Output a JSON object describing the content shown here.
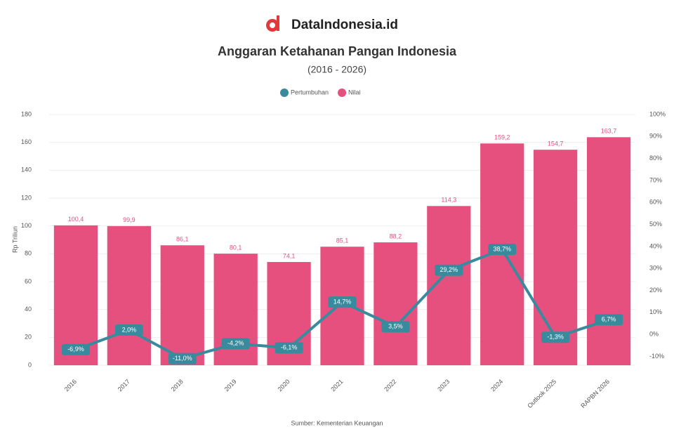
{
  "brand": "DataIndonesia.id",
  "chart_data": {
    "type": "bar-line",
    "title": "Anggaran Ketahanan Pangan Indonesia",
    "subtitle": "(2016 - 2026)",
    "y_axis_label": "Rp Triliun",
    "source": "Sumber: Kementerian Keuangan",
    "categories": [
      "2016",
      "2017",
      "2018",
      "2019",
      "2020",
      "2021",
      "2022",
      "2023",
      "2024",
      "Outlook 2025",
      "RAPBN 2026"
    ],
    "series": [
      {
        "name": "Pertumbuhan",
        "type": "line",
        "axis": "y2",
        "color": "#3a8a9e",
        "values": [
          -6.9,
          2.0,
          -11.0,
          -4.2,
          -6.1,
          14.7,
          3.5,
          29.2,
          38.7,
          -1.3,
          6.7
        ],
        "value_labels": [
          "-6,9%",
          "2,0%",
          "-11,0%",
          "-4,2%",
          "-6,1%",
          "14,7%",
          "3,5%",
          "29,2%",
          "38,7%",
          "-1,3%",
          "6,7%"
        ]
      },
      {
        "name": "Nilai",
        "type": "bar",
        "color": "#e5507f",
        "values": [
          100.4,
          99.9,
          86.1,
          80.1,
          74.1,
          85.1,
          88.2,
          114.3,
          159.2,
          154.7,
          163.7
        ],
        "value_labels": [
          "100,4",
          "99,9",
          "86,1",
          "80,1",
          "74,1",
          "85,1",
          "88,2",
          "114,3",
          "159,2",
          "154,7",
          "163,7"
        ]
      }
    ],
    "ylim": [
      0,
      180
    ],
    "yticks": [
      0,
      20,
      40,
      60,
      80,
      100,
      120,
      140,
      160,
      180
    ],
    "y2lim": [
      -14,
      100
    ],
    "y2ticks": [
      {
        "value": -10,
        "label": "-10%"
      },
      {
        "value": 0,
        "label": "0%"
      },
      {
        "value": 10,
        "label": "10%"
      },
      {
        "value": 20,
        "label": "20%"
      },
      {
        "value": 30,
        "label": "30%"
      },
      {
        "value": 40,
        "label": "40%"
      },
      {
        "value": 50,
        "label": "50%"
      },
      {
        "value": 60,
        "label": "60%"
      },
      {
        "value": 70,
        "label": "70%"
      },
      {
        "value": 80,
        "label": "80%"
      },
      {
        "value": 90,
        "label": "90%"
      },
      {
        "value": 100,
        "label": "100%"
      }
    ],
    "grid": true,
    "legend": "top"
  }
}
